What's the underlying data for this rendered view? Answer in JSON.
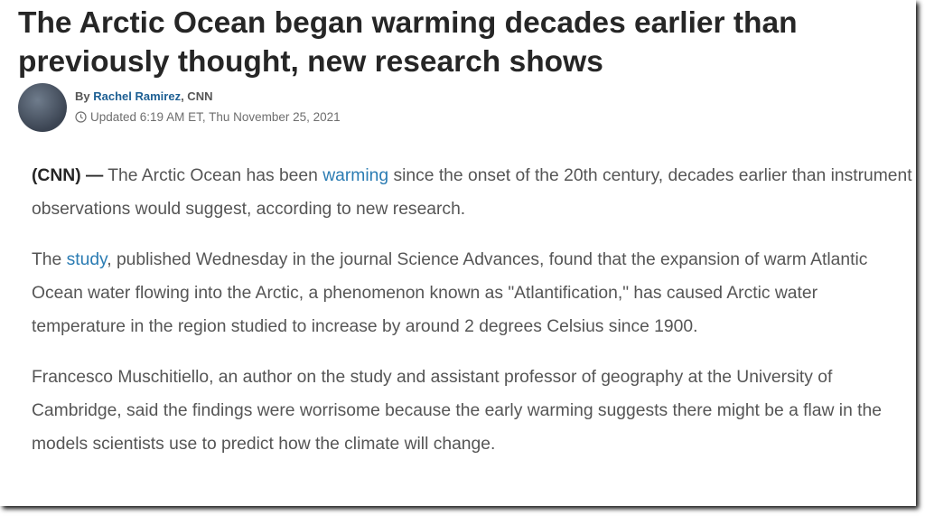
{
  "header": {
    "title": "The Arctic Ocean began warming decades earlier than previously thought, new research shows",
    "byline": {
      "prefix": "By",
      "author": "Rachel Ramirez",
      "suffix": ", CNN"
    },
    "updated": "Updated 6:19 AM ET, Thu November 25, 2021"
  },
  "body": {
    "paragraphs": [
      [
        "(CNN) —",
        " The Arctic Ocean has been ",
        "warming",
        " since the onset of the 20th century, decades earlier than instrument observations would suggest, according to new research."
      ],
      [
        "The ",
        "study",
        ", published Wednesday in the journal Science Advances, found that the expansion of warm Atlantic Ocean water flowing into the Arctic, a phenomenon known as \"Atlantification,\" has caused Arctic water temperature in the region studied to increase by around 2 degrees Celsius since 1900."
      ],
      [
        "Francesco Muschitiello, an author on the study and assistant professor of geography at the University of Cambridge, said the findings were worrisome because the early warming suggests there might be a flaw in the models scientists use to predict how the climate will change."
      ]
    ]
  }
}
